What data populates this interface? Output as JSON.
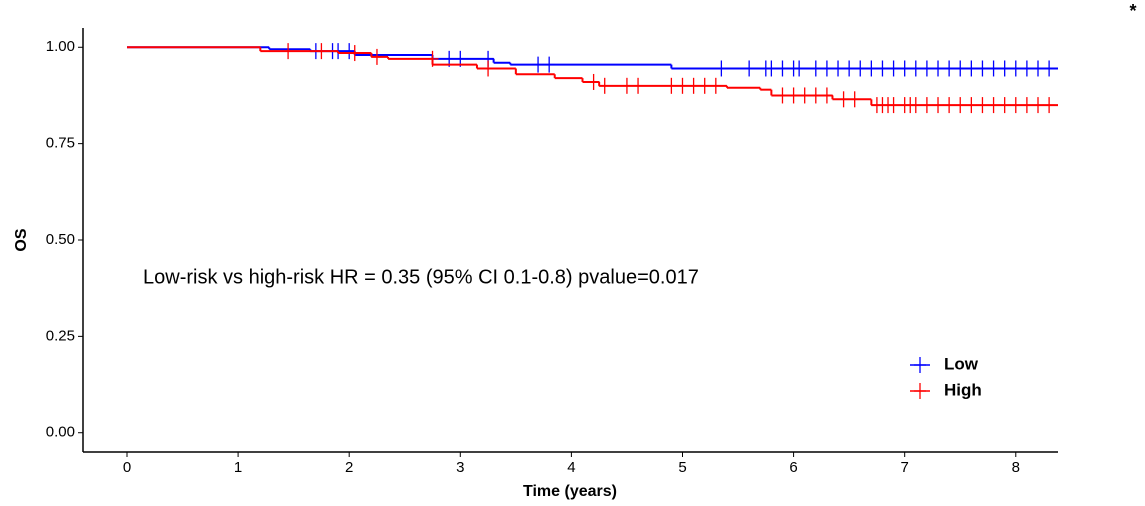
{
  "chart_data": {
    "type": "survival",
    "corner_mark": "*",
    "annotation": "Low-risk vs high-risk HR = 0.35 (95% CI 0.1-0.8) pvalue=0.017",
    "x_label": "Time (years)",
    "y_label": "OS",
    "xlim": [
      -0.396,
      8.38
    ],
    "ylim": [
      -0.05,
      1.05
    ],
    "xticks": [
      0,
      1,
      2,
      3,
      4,
      5,
      6,
      7,
      8
    ],
    "yticks": [
      {
        "value": 0,
        "label": "0.00"
      },
      {
        "value": 0.25,
        "label": "0.25"
      },
      {
        "value": 0.5,
        "label": "0.50"
      },
      {
        "value": 0.75,
        "label": "0.75"
      },
      {
        "value": 1,
        "label": "1.00"
      }
    ],
    "legend": "bottom-right",
    "series": [
      {
        "name": "Low",
        "color": "#0000ff",
        "x": [
          0,
          1.28,
          1.65,
          2.05,
          2.75,
          3.3,
          3.45,
          4.9,
          8.38
        ],
        "values": [
          1,
          0.995,
          0.99,
          0.98,
          0.97,
          0.96,
          0.955,
          0.945,
          0.945
        ],
        "censor_x": [
          1.7,
          1.85,
          1.9,
          2.0,
          2.9,
          3.0,
          3.25,
          3.7,
          3.8,
          5.35,
          5.6,
          5.75,
          5.8,
          5.9,
          6.0,
          6.05,
          6.2,
          6.3,
          6.4,
          6.5,
          6.6,
          6.7,
          6.8,
          6.9,
          7.0,
          7.1,
          7.2,
          7.3,
          7.4,
          7.5,
          7.6,
          7.7,
          7.8,
          7.9,
          8.0,
          8.1,
          8.2,
          8.3
        ],
        "censor_values": [
          0.99,
          0.99,
          0.99,
          0.99,
          0.97,
          0.97,
          0.97,
          0.955,
          0.955,
          0.945,
          0.945,
          0.945,
          0.945,
          0.945,
          0.945,
          0.945,
          0.945,
          0.945,
          0.945,
          0.945,
          0.945,
          0.945,
          0.945,
          0.945,
          0.945,
          0.945,
          0.945,
          0.945,
          0.945,
          0.945,
          0.945,
          0.945,
          0.945,
          0.945,
          0.945,
          0.945,
          0.945,
          0.945
        ]
      },
      {
        "name": "High",
        "color": "#ff0000",
        "x": [
          0,
          1.2,
          1.9,
          2.2,
          2.35,
          2.75,
          3.15,
          3.5,
          3.85,
          4.1,
          4.25,
          5.4,
          5.7,
          5.8,
          6.35,
          6.7,
          8.38
        ],
        "values": [
          1,
          0.99,
          0.985,
          0.975,
          0.97,
          0.955,
          0.945,
          0.93,
          0.92,
          0.91,
          0.9,
          0.895,
          0.89,
          0.875,
          0.865,
          0.85,
          0.85
        ],
        "censor_x": [
          1.45,
          1.75,
          2.05,
          2.25,
          2.75,
          3.25,
          4.2,
          4.3,
          4.5,
          4.6,
          4.9,
          5.0,
          5.1,
          5.2,
          5.3,
          5.9,
          6.0,
          6.1,
          6.2,
          6.3,
          6.45,
          6.55,
          6.75,
          6.8,
          6.85,
          6.9,
          7.0,
          7.05,
          7.1,
          7.2,
          7.3,
          7.4,
          7.5,
          7.6,
          7.7,
          7.8,
          7.9,
          8.0,
          8.1,
          8.2,
          8.3
        ],
        "censor_values": [
          0.99,
          0.99,
          0.985,
          0.975,
          0.97,
          0.945,
          0.91,
          0.9,
          0.9,
          0.9,
          0.9,
          0.9,
          0.9,
          0.9,
          0.9,
          0.875,
          0.875,
          0.875,
          0.875,
          0.875,
          0.865,
          0.865,
          0.85,
          0.85,
          0.85,
          0.85,
          0.85,
          0.85,
          0.85,
          0.85,
          0.85,
          0.85,
          0.85,
          0.85,
          0.85,
          0.85,
          0.85,
          0.85,
          0.85,
          0.85,
          0.85
        ]
      }
    ]
  }
}
